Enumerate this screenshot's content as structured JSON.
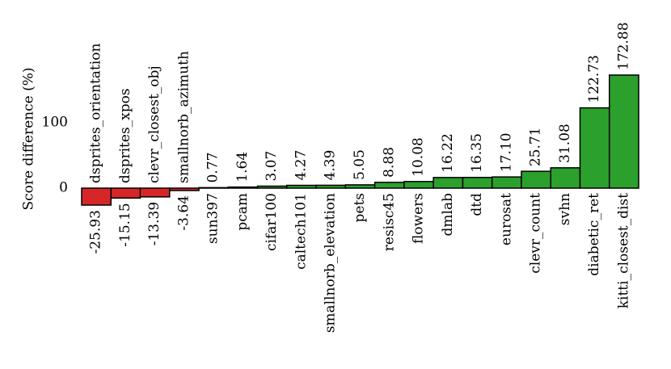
{
  "chart_data": {
    "type": "bar",
    "ylabel": "Score difference (%)",
    "categories": [
      "dsprites_orientation",
      "dsprites_xpos",
      "clevr_closest_obj",
      "smallnorb_azimuth",
      "sun397",
      "pcam",
      "cifar100",
      "caltech101",
      "smallnorb_elevation",
      "pets",
      "resisc45",
      "flowers",
      "dmlab",
      "dtd",
      "eurosat",
      "clevr_count",
      "svhn",
      "diabetic_ret",
      "kitti_closest_dist"
    ],
    "values": [
      -25.93,
      -15.15,
      -13.39,
      -3.64,
      0.77,
      1.64,
      3.07,
      4.27,
      4.39,
      5.05,
      8.88,
      10.08,
      16.22,
      16.35,
      17.1,
      25.71,
      31.08,
      122.73,
      172.88
    ],
    "value_labels": [
      "-25.93",
      "-15.15",
      "-13.39",
      "-3.64",
      "0.77",
      "1.64",
      "3.07",
      "4.27",
      "4.39",
      "5.05",
      "8.88",
      "10.08",
      "16.22",
      "16.35",
      "17.10",
      "25.71",
      "31.08",
      "122.73",
      "172.88"
    ],
    "negative_color": "#d62728",
    "positive_color": "#2ca02c",
    "ylim": [
      -30,
      180
    ],
    "yticks": [
      0,
      100
    ],
    "grid": false
  }
}
